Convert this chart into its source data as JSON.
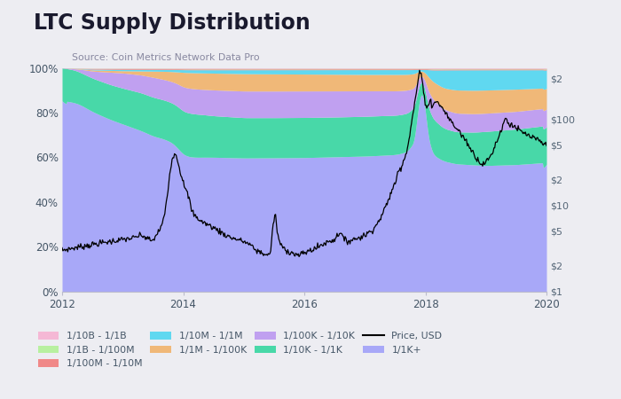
{
  "title": "LTC Supply Distribution",
  "source": "Source: Coin Metrics Network Data Pro",
  "bg_color": "#ededf2",
  "colors": {
    "1/10B - 1/1B": "#f5b8d5",
    "1/1B - 1/100M": "#b8f0a0",
    "1/100M - 1/10M": "#f08888",
    "1/10M - 1/1M": "#60d8f0",
    "1/1M - 1/100K": "#f0b878",
    "1/100K - 1/10K": "#c0a0f0",
    "1/10K - 1/1K": "#48d8a8",
    "1/1K+": "#a8a8f8"
  },
  "legend_order": [
    "1/10B - 1/1B",
    "1/1B - 1/100M",
    "1/100M - 1/10M",
    "1/10M - 1/1M",
    "1/1M - 1/100K",
    "1/100K - 1/10K",
    "1/10K - 1/1K",
    "Price, USD",
    "1/1K+"
  ]
}
